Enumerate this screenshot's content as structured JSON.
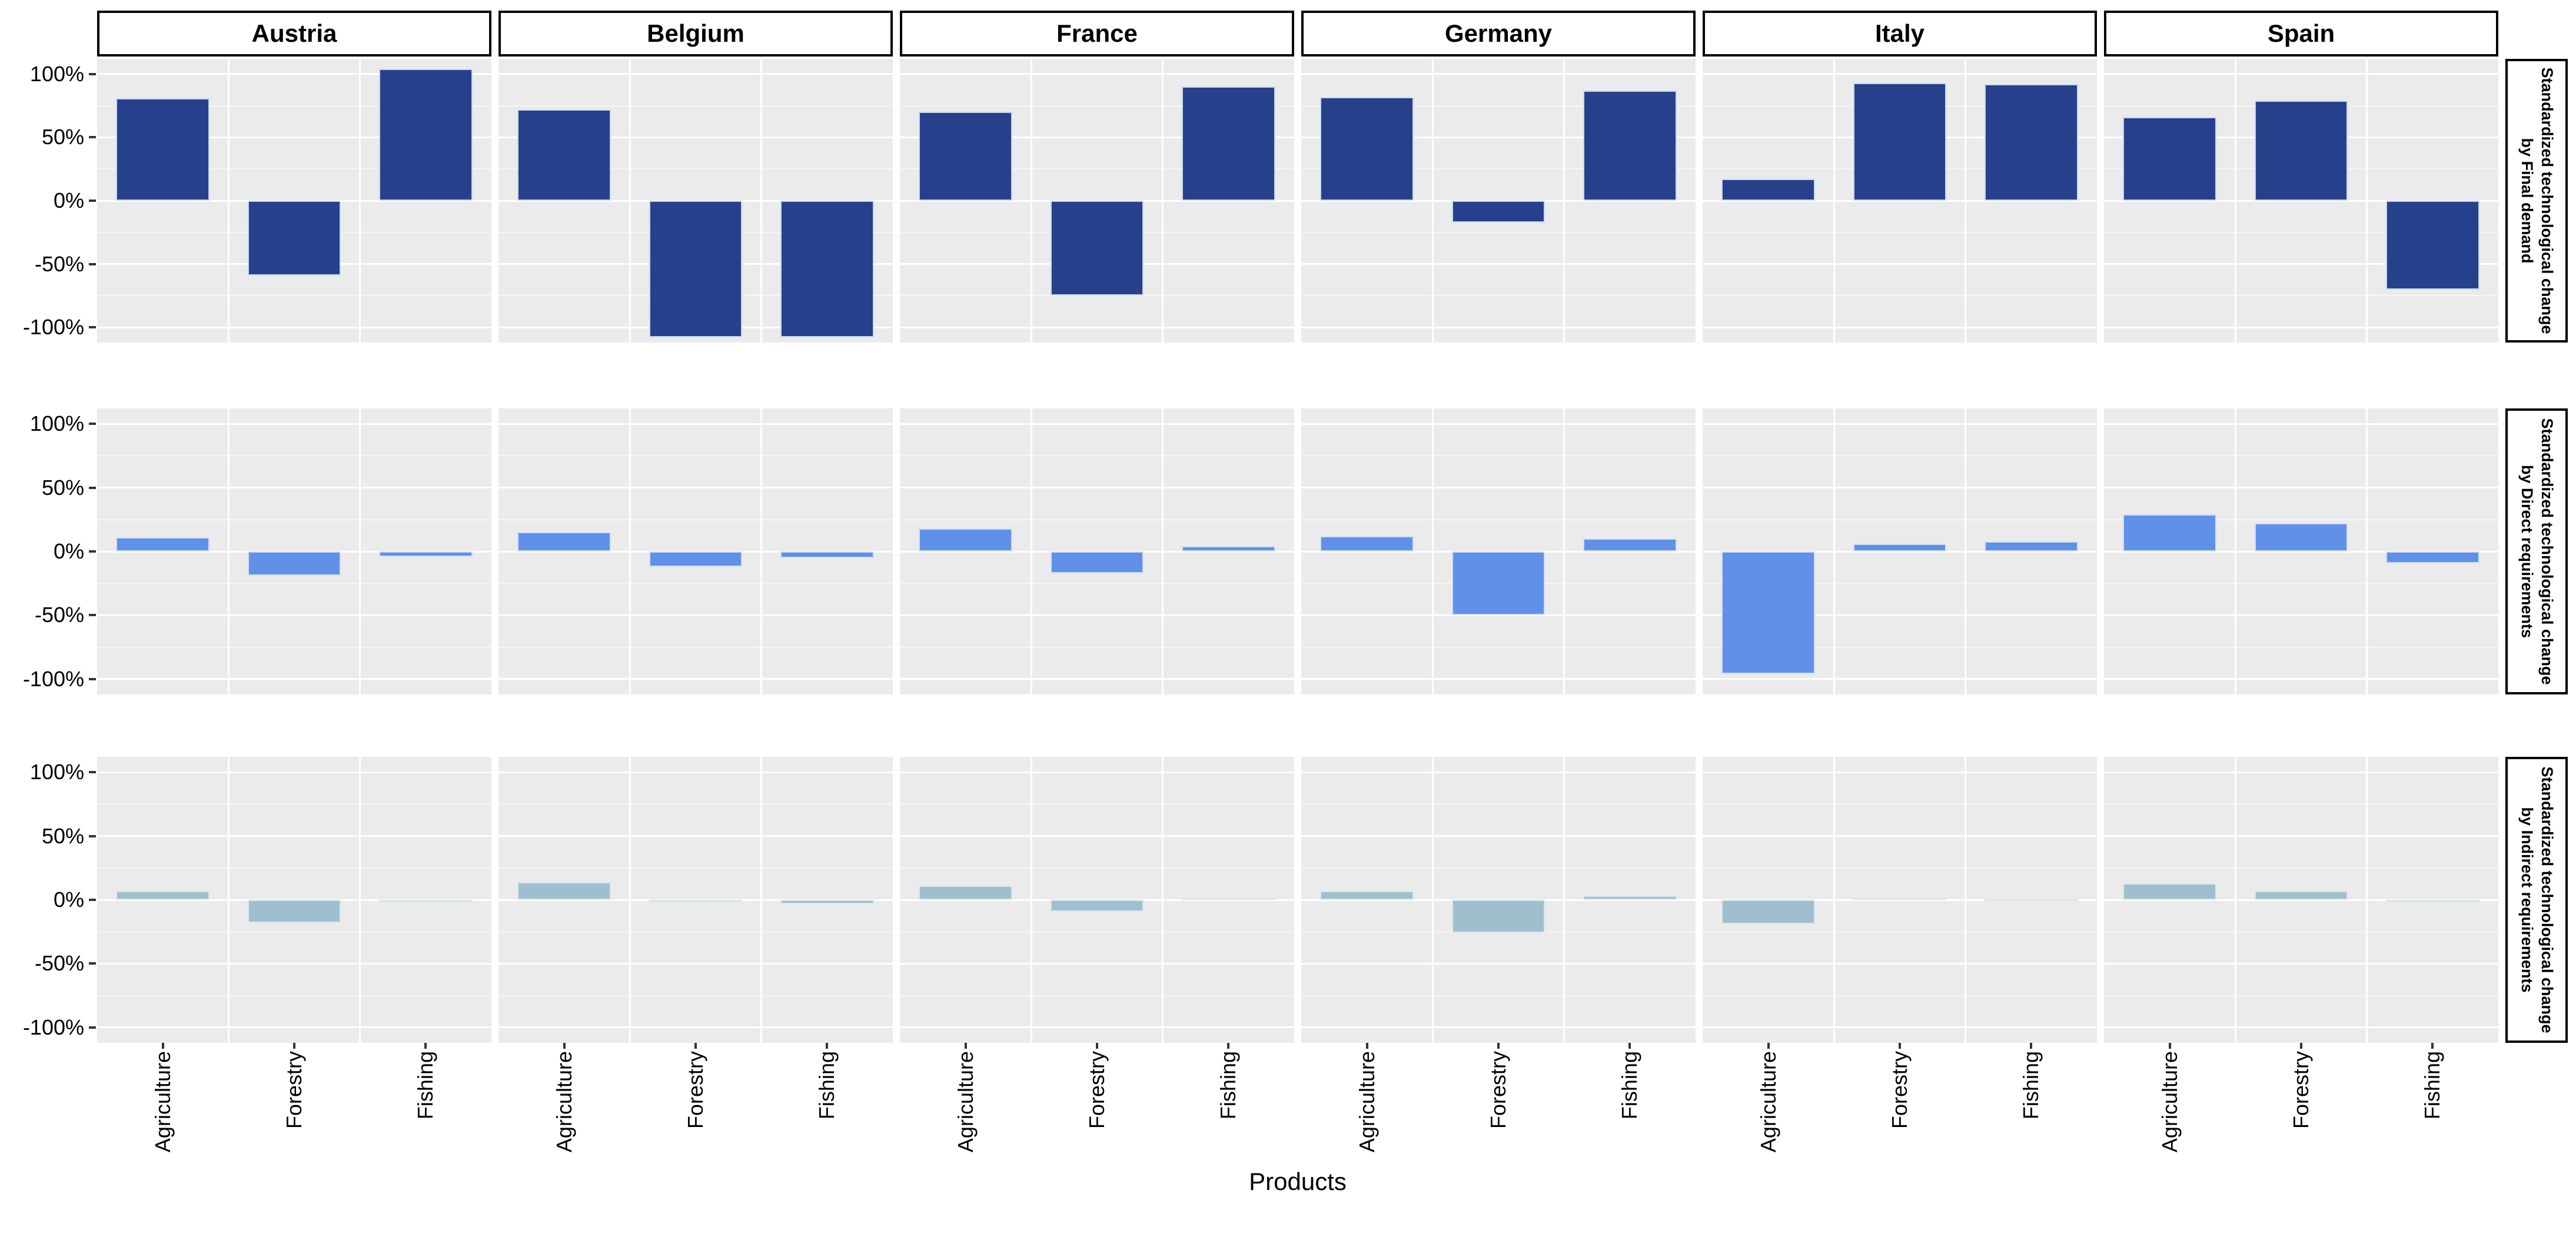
{
  "chart_data": {
    "type": "bar",
    "facet": "grid",
    "title": "",
    "xlabel": "Products",
    "value_unit": "percent",
    "columns": [
      "Austria",
      "Belgium",
      "France",
      "Germany",
      "Italy",
      "Spain"
    ],
    "categories": [
      "Agriculture",
      "Forestry",
      "Fishing"
    ],
    "ylim": [
      -112,
      112
    ],
    "yticks": [
      100,
      50,
      0,
      -50,
      -100
    ],
    "ytick_labels": [
      "100%",
      "50%",
      "0%",
      "-50%",
      "-100%"
    ],
    "minor_gridlines": [
      75,
      25,
      -25,
      -75
    ],
    "grid": true,
    "legend_position": "none",
    "panel_bg": "#EBEBEB",
    "grid_major_color": "#FFFFFF",
    "strip_bg": "#FFFFFF",
    "strip_border": "#000000",
    "rows": [
      {
        "strip_label_line1": "Standardized technological change",
        "strip_label_line2": "by Final demand",
        "bar_color": "#27408B",
        "bar_border": "#C5D8F0",
        "series": {
          "Austria": [
            81,
            -59,
            104
          ],
          "Belgium": [
            72,
            -108,
            -108
          ],
          "France": [
            70,
            -75,
            90
          ],
          "Germany": [
            82,
            -17,
            87
          ],
          "Italy": [
            17,
            93,
            92
          ],
          "Spain": [
            66,
            79,
            -70
          ]
        }
      },
      {
        "strip_label_line1": "Standardized technological change",
        "strip_label_line2": "by Direct requirements",
        "bar_color": "#6190E8",
        "bar_border": "#CFE0F5",
        "series": {
          "Austria": [
            11,
            -19,
            -4
          ],
          "Belgium": [
            15,
            -12,
            -5
          ],
          "France": [
            18,
            -17,
            4
          ],
          "Germany": [
            12,
            -50,
            10
          ],
          "Italy": [
            -96,
            6,
            8
          ],
          "Spain": [
            29,
            22,
            -9
          ]
        }
      },
      {
        "strip_label_line1": "Standardized technological change",
        "strip_label_line2": "by Indirect requirements",
        "bar_color": "#9FBFCE",
        "bar_border": "#D9E7ED",
        "series": {
          "Austria": [
            7,
            -18,
            -1
          ],
          "Belgium": [
            14,
            -1,
            -3
          ],
          "France": [
            11,
            -9,
            2
          ],
          "Germany": [
            7,
            -26,
            3
          ],
          "Italy": [
            -19,
            2,
            1
          ],
          "Spain": [
            13,
            7,
            -1
          ]
        }
      }
    ]
  }
}
